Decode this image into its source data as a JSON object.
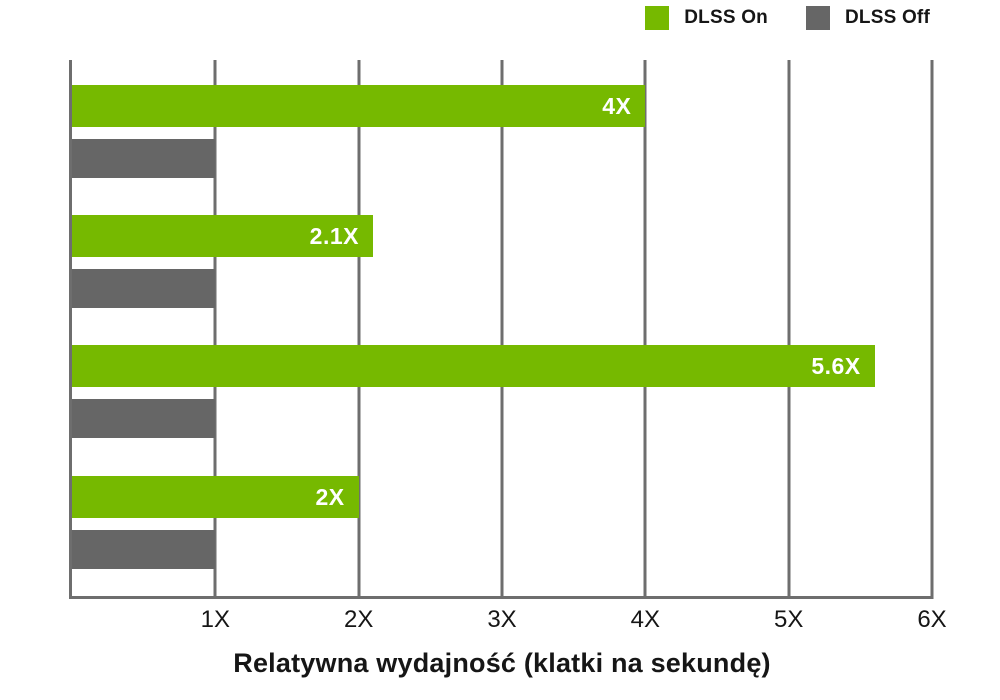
{
  "chart_data": {
    "type": "bar",
    "orientation": "horizontal",
    "categories": [
      "",
      "",
      "",
      ""
    ],
    "series": [
      {
        "name": "DLSS On",
        "color": "#76B900",
        "values": [
          4,
          2.1,
          5.6,
          2
        ],
        "bar_labels": [
          "4X",
          "2.1X",
          "5.6X",
          "2X"
        ]
      },
      {
        "name": "DLSS Off",
        "color": "#666666",
        "values": [
          1,
          1,
          1,
          1
        ],
        "bar_labels": [
          "",
          "",
          "",
          ""
        ]
      }
    ],
    "xlabel": "Relatywna wydajność (klatki na sekundę)",
    "xticks": [
      "1X",
      "2X",
      "3X",
      "4X",
      "5X",
      "6X"
    ],
    "xtick_values": [
      1,
      2,
      3,
      4,
      5,
      6
    ],
    "xlim": [
      0,
      6
    ],
    "grid": true,
    "gridline_color": "#6e6e6e",
    "legend_position": "top-right",
    "bar_label_color": "#ffffff",
    "text_color": "#161616"
  }
}
